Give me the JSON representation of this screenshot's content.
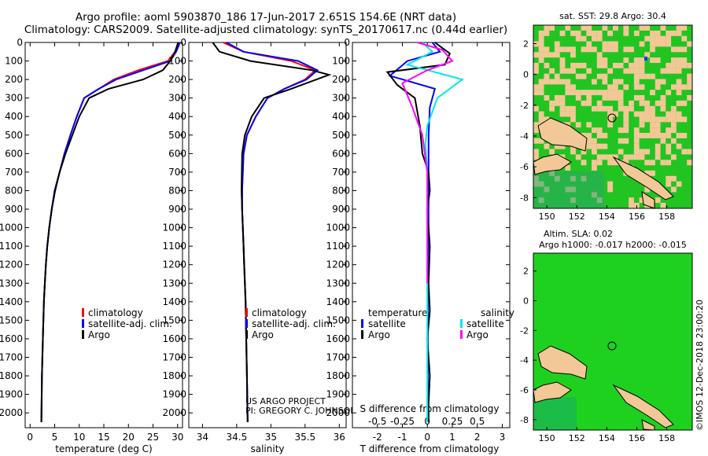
{
  "header": {
    "line1": "Argo profile: aoml 5903870_186 17-Jun-2017 2.651S 154.6E (NRT data)",
    "line2": "Climatology: CARS2009. Satellite-adjusted climatology: synTS_20170617.nc (0.44d earlier)"
  },
  "colors": {
    "climatology": "#ff0000",
    "satellite": "#0000ff",
    "argo": "#000000",
    "argo_sal_diff": "#ff00ff",
    "sat_sal_diff": "#00e8e8",
    "land": "#f2c896",
    "ocean_sst": "#22c422",
    "ocean_sla": "#1fd11f",
    "marker": "#003fff"
  },
  "depth_ticks": [
    0,
    100,
    200,
    300,
    400,
    500,
    600,
    700,
    800,
    900,
    1000,
    1100,
    1200,
    1300,
    1400,
    1500,
    1600,
    1700,
    1800,
    1900,
    2000
  ],
  "chart_data": [
    {
      "type": "line",
      "id": "temperature",
      "xlabel": "temperature (deg C)",
      "ylabel": "depth",
      "xlim": [
        -1,
        31
      ],
      "ylim": [
        2080,
        0
      ],
      "xticks": [
        0,
        5,
        10,
        15,
        20,
        25,
        30
      ],
      "legend": {
        "placement": "bottom-center",
        "entries": [
          "climatology",
          "satellite-adj. clim.",
          "Argo"
        ]
      },
      "series": [
        {
          "name": "climatology",
          "color": "#ff0000",
          "x": [
            30.3,
            29.5,
            28,
            22,
            17,
            14,
            11,
            9.5,
            8.2,
            7,
            6,
            5,
            4.4,
            3.9,
            3.5,
            3.2,
            3.0,
            2.8,
            2.6,
            2.4,
            2.3
          ],
          "depth": [
            0,
            50,
            100,
            150,
            200,
            250,
            300,
            400,
            500,
            600,
            700,
            800,
            900,
            1000,
            1100,
            1200,
            1300,
            1400,
            1600,
            1800,
            2050
          ]
        },
        {
          "name": "satellite-adj. clim.",
          "color": "#0000ff",
          "x": [
            30.5,
            29.7,
            28.5,
            23,
            17.5,
            14,
            11,
            9.5,
            8.2,
            7,
            6,
            5,
            4.4,
            3.9,
            3.5,
            3.2,
            3.0,
            2.8,
            2.6,
            2.4,
            2.3
          ],
          "depth": [
            0,
            50,
            100,
            150,
            200,
            250,
            300,
            400,
            500,
            600,
            700,
            800,
            900,
            1000,
            1100,
            1200,
            1300,
            1400,
            1600,
            1800,
            2050
          ]
        },
        {
          "name": "Argo",
          "color": "#000000",
          "x": [
            30.1,
            29.5,
            28.5,
            27,
            23,
            16,
            12,
            10,
            8.6,
            7.2,
            6,
            5.1,
            4.4,
            3.9,
            3.5,
            3.2,
            3.0,
            2.8,
            2.6,
            2.4,
            2.3
          ],
          "depth": [
            0,
            50,
            100,
            150,
            200,
            250,
            300,
            400,
            500,
            600,
            700,
            800,
            900,
            1000,
            1100,
            1200,
            1300,
            1400,
            1600,
            1800,
            2050
          ]
        }
      ]
    },
    {
      "type": "line",
      "id": "salinity",
      "xlabel": "salinity",
      "ylabel": "depth",
      "xlim": [
        33.8,
        36.1
      ],
      "ylim": [
        2080,
        0
      ],
      "xticks": [
        34,
        34.5,
        35,
        35.5,
        36
      ],
      "legend": {
        "placement": "bottom-center",
        "entries": [
          "climatology",
          "satellite-adj. clim.",
          "Argo"
        ]
      },
      "annotation": {
        "line1": "US ARGO PROJECT",
        "line2": "PI: GREGORY C. JOHNSON"
      },
      "series": [
        {
          "name": "climatology",
          "color": "#ff0000",
          "x": [
            34.3,
            34.6,
            35.3,
            35.65,
            35.5,
            35.2,
            34.95,
            34.78,
            34.65,
            34.6,
            34.58,
            34.58,
            34.59,
            34.6,
            34.61,
            34.62,
            34.63,
            34.64,
            34.65,
            34.66
          ],
          "depth": [
            0,
            50,
            100,
            150,
            200,
            250,
            300,
            400,
            500,
            600,
            800,
            900,
            1000,
            1100,
            1200,
            1300,
            1400,
            1600,
            1800,
            2050
          ]
        },
        {
          "name": "satellite-adj. clim.",
          "color": "#0000ff",
          "x": [
            34.35,
            34.6,
            35.4,
            35.68,
            35.52,
            35.2,
            34.95,
            34.78,
            34.65,
            34.6,
            34.58,
            34.58,
            34.59,
            34.6,
            34.61,
            34.62,
            34.63,
            34.64,
            34.65,
            34.66
          ],
          "depth": [
            0,
            50,
            100,
            150,
            200,
            250,
            300,
            400,
            500,
            600,
            800,
            900,
            1000,
            1100,
            1200,
            1300,
            1400,
            1600,
            1800,
            2050
          ]
        },
        {
          "name": "Argo",
          "color": "#000000",
          "x": [
            34.15,
            34.25,
            34.7,
            35.6,
            35.85,
            35.3,
            34.9,
            34.72,
            34.62,
            34.58,
            34.57,
            34.58,
            34.59,
            34.6,
            34.61,
            34.62,
            34.63,
            34.64,
            34.65,
            34.66
          ],
          "depth": [
            0,
            50,
            100,
            150,
            175,
            250,
            300,
            400,
            500,
            600,
            800,
            900,
            1000,
            1100,
            1200,
            1300,
            1400,
            1600,
            1800,
            2050
          ]
        }
      ]
    },
    {
      "type": "line",
      "id": "difference",
      "xlabel": "T difference from climatology",
      "xlabel2": "S difference from climatology",
      "xlim": [
        -3,
        3.3
      ],
      "ylim": [
        2080,
        0
      ],
      "xticks": [
        -2,
        -1,
        0,
        1,
        2,
        3
      ],
      "sticks": [
        -0.5,
        -0.25,
        0,
        0.25,
        0.5
      ],
      "sticklabels": [
        "-0.5",
        "-0.25",
        "0",
        "0.25",
        "0.5"
      ],
      "legend_left": {
        "title": "temperature",
        "entries": [
          "satellite",
          "Argo"
        ]
      },
      "legend_right": {
        "title": "salinity",
        "entries": [
          "satellite",
          "Argo"
        ]
      },
      "series": [
        {
          "name": "temperature satellite",
          "color": "#0000ff",
          "x": [
            0.2,
            0.5,
            -0.8,
            -1.5,
            0.3,
            0.1,
            0.05,
            0.05,
            0.05,
            0.05,
            0.02,
            0.02,
            0.02,
            0.02
          ],
          "depth": [
            0,
            50,
            100,
            180,
            250,
            350,
            500,
            700,
            900,
            1100,
            1400,
            1600,
            1800,
            2050
          ]
        },
        {
          "name": "temperature Argo",
          "color": "#000000",
          "x": [
            0.3,
            0.9,
            0.7,
            -1.6,
            -1.2,
            -0.5,
            -0.3,
            -0.2,
            0.05,
            0.1,
            0.0,
            0.1,
            0.05,
            0.1,
            0.0,
            0.1,
            0.05,
            0.05
          ],
          "depth": [
            0,
            60,
            120,
            160,
            230,
            300,
            450,
            600,
            700,
            800,
            900,
            1100,
            1300,
            1450,
            1600,
            1800,
            1950,
            2050
          ]
        },
        {
          "name": "salinity satellite",
          "color": "#00e8e8",
          "x": [
            -0.05,
            0.05,
            -0.2,
            0.35,
            0.1,
            0.0,
            -0.02,
            0.0,
            0.0,
            0.0,
            0.0,
            0.0
          ],
          "depth": [
            0,
            50,
            120,
            200,
            300,
            450,
            550,
            700,
            1000,
            1400,
            1800,
            2050
          ]
        },
        {
          "name": "salinity Argo",
          "color": "#ff00ff",
          "x": [
            -0.1,
            0.15,
            0.25,
            0.0,
            -0.25,
            -0.15,
            -0.05,
            0.0,
            0.0,
            0.0
          ],
          "depth": [
            0,
            40,
            100,
            150,
            220,
            350,
            500,
            700,
            1000,
            1300
          ]
        }
      ]
    }
  ],
  "maps": {
    "sst": {
      "title": "sat. SST: 29.8 Argo: 30.4",
      "xticks": [
        150,
        152,
        154,
        156,
        158
      ],
      "yticks": [
        2,
        0,
        -2,
        -4,
        -6,
        -8
      ]
    },
    "sla": {
      "title1": "Altim. SLA: 0.02",
      "title2": "Argo h1000: -0.017 h2000: -0.015",
      "xticks": [
        150,
        152,
        154,
        156,
        158
      ],
      "yticks": [
        2,
        0,
        -2,
        -4,
        -6,
        -8
      ]
    }
  },
  "watermark": "©IMOS 12-Dec-2018 23:00:20"
}
